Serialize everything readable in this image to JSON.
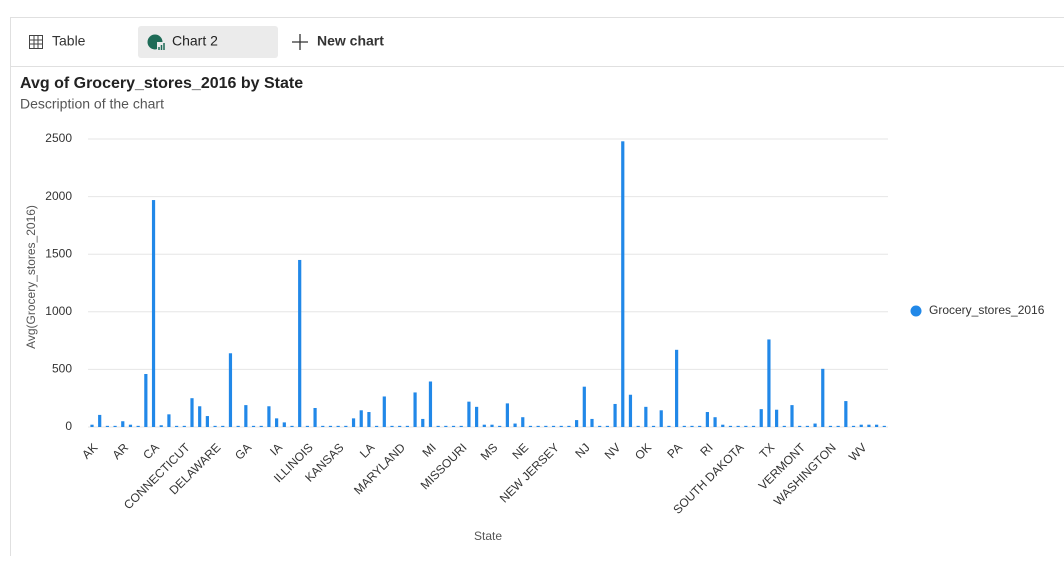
{
  "tabs": [
    "Table",
    "Chart 2",
    "New chart"
  ],
  "chart_data": {
    "type": "bar",
    "title": "Avg of Grocery_stores_2016 by State",
    "subtitle": "Description of the chart",
    "x_label": "State",
    "y_label": "Avg(Grocery_stores_2016)",
    "categories": [
      "AK",
      null,
      null,
      null,
      "AR",
      null,
      null,
      null,
      "CA",
      null,
      null,
      null,
      "CONNECTICUT",
      null,
      null,
      null,
      "DELAWARE",
      null,
      null,
      null,
      "GA",
      null,
      null,
      null,
      "IA",
      null,
      null,
      null,
      "ILLINOIS",
      null,
      null,
      null,
      "KANSAS",
      null,
      null,
      null,
      "LA",
      null,
      null,
      null,
      "MARYLAND",
      null,
      null,
      null,
      "MI",
      null,
      null,
      null,
      "MISSOURI",
      null,
      null,
      null,
      "MS",
      null,
      null,
      null,
      "NE",
      null,
      null,
      null,
      "NEW JERSEY",
      null,
      null,
      null,
      "NJ",
      null,
      null,
      null,
      "NV",
      null,
      null,
      null,
      "OK",
      null,
      null,
      null,
      "PA",
      null,
      null,
      null,
      "RI",
      null,
      null,
      null,
      "SOUTH DAKOTA",
      null,
      null,
      null,
      "TX",
      null,
      null,
      null,
      "VERMONT",
      null,
      null,
      null,
      "WASHINGTON",
      null,
      null,
      null,
      "WV",
      null,
      null,
      null
    ],
    "series": [
      {
        "name": "Grocery_stores_2016",
        "color": "#2188e8",
        "values": [
          20,
          105,
          10,
          10,
          50,
          20,
          10,
          460,
          1970,
          15,
          110,
          10,
          10,
          250,
          180,
          95,
          10,
          10,
          640,
          10,
          190,
          10,
          10,
          180,
          75,
          40,
          10,
          1450,
          10,
          165,
          10,
          10,
          10,
          10,
          75,
          145,
          130,
          10,
          265,
          10,
          10,
          10,
          300,
          70,
          395,
          10,
          10,
          10,
          10,
          220,
          175,
          20,
          20,
          10,
          205,
          30,
          85,
          10,
          10,
          10,
          10,
          10,
          10,
          60,
          350,
          70,
          10,
          10,
          200,
          2480,
          280,
          10,
          175,
          10,
          145,
          10,
          670,
          10,
          10,
          10,
          130,
          85,
          20,
          10,
          10,
          10,
          10,
          155,
          760,
          150,
          10,
          190,
          10,
          10,
          30,
          505,
          10,
          10,
          225,
          10,
          20,
          20,
          20,
          10
        ]
      }
    ],
    "ylim": [
      0,
      2500
    ],
    "yticks": [
      0,
      500,
      1000,
      1500,
      2000,
      2500
    ],
    "grid": true,
    "legend": "right"
  }
}
